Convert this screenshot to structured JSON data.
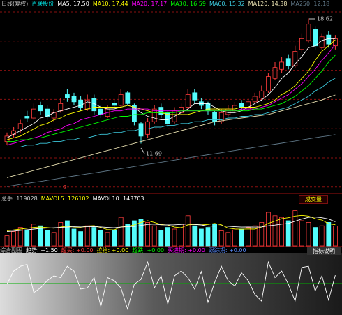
{
  "chart_data": [
    {
      "type": "candlestick",
      "title": "日线(复权)",
      "subtitle": "百联股份",
      "ylim": [
        9,
        19.1
      ],
      "up_color": "#ff3c3c",
      "down_color": "#54fcfc",
      "open": [
        11.8,
        12.2,
        12.5,
        13.2,
        13.1,
        13.8,
        13.6,
        13.1,
        13.5,
        14.4,
        14.3,
        14.1,
        13.6,
        14.2,
        13.6,
        13.2,
        13.9,
        13.8,
        14.5,
        13.8,
        12.8,
        12.2,
        12.9,
        13.7,
        13.4,
        12.9,
        13.4,
        13.7,
        14.5,
        14.0,
        13.9,
        13.4,
        12.9,
        13.3,
        13.5,
        13.9,
        13.6,
        14.0,
        14.2,
        14.6,
        15.3,
        15.8,
        16.4,
        16.0,
        16.9,
        17.4,
        18.0,
        17.0,
        17.7,
        17.1
      ],
      "high": [
        12.3,
        12.6,
        13.0,
        13.5,
        13.9,
        14.0,
        13.8,
        13.6,
        14.2,
        14.7,
        14.5,
        14.3,
        14.4,
        14.4,
        13.8,
        13.8,
        14.1,
        14.7,
        14.6,
        13.9,
        12.9,
        13.1,
        13.8,
        13.9,
        13.5,
        13.7,
        13.9,
        14.7,
        14.7,
        14.2,
        14.0,
        13.5,
        13.6,
        13.8,
        14.0,
        14.1,
        14.2,
        14.5,
        14.9,
        15.6,
        16.2,
        16.5,
        16.6,
        17.1,
        17.8,
        18.62,
        18.2,
        17.8,
        17.9,
        17.7
      ],
      "low": [
        11.6,
        12.0,
        12.3,
        12.9,
        13.0,
        13.3,
        13.0,
        12.9,
        13.4,
        14.0,
        13.8,
        13.5,
        13.5,
        13.3,
        13.1,
        13.1,
        13.6,
        13.7,
        13.8,
        12.7,
        11.69,
        12.0,
        12.8,
        13.1,
        12.6,
        12.8,
        13.3,
        13.6,
        13.9,
        13.6,
        13.3,
        12.7,
        12.8,
        13.2,
        13.4,
        13.5,
        13.5,
        13.9,
        14.1,
        14.5,
        15.2,
        15.6,
        15.8,
        15.9,
        16.7,
        17.3,
        16.9,
        16.9,
        17.0,
        16.9
      ],
      "close": [
        12.1,
        12.4,
        12.8,
        13.1,
        13.6,
        13.5,
        13.2,
        13.4,
        13.9,
        14.2,
        14.0,
        13.7,
        14.1,
        13.5,
        13.3,
        13.6,
        13.8,
        14.4,
        13.9,
        12.9,
        12.1,
        12.9,
        13.6,
        13.3,
        12.8,
        13.5,
        13.7,
        14.4,
        14.1,
        13.8,
        13.5,
        12.9,
        13.4,
        13.6,
        13.8,
        13.7,
        14.0,
        14.3,
        14.6,
        15.4,
        15.9,
        16.2,
        16.0,
        16.8,
        17.5,
        18.3,
        17.1,
        17.6,
        17.2,
        17.5
      ],
      "series": [
        {
          "name": "MA5: 17.50",
          "color": "#ffffff",
          "values": [
            12.0,
            12.2,
            12.4,
            12.6,
            12.8,
            13.1,
            13.2,
            13.4,
            13.5,
            13.6,
            13.7,
            13.8,
            14.0,
            13.9,
            13.7,
            13.6,
            13.6,
            13.7,
            13.8,
            13.7,
            13.4,
            13.2,
            13.1,
            13.0,
            13.0,
            13.2,
            13.4,
            13.6,
            13.9,
            13.9,
            13.9,
            13.7,
            13.5,
            13.4,
            13.4,
            13.5,
            13.7,
            13.9,
            14.1,
            14.4,
            14.8,
            15.3,
            15.6,
            16.1,
            16.5,
            17.0,
            17.1,
            17.4,
            17.5,
            17.5
          ]
        },
        {
          "name": "MA10: 17.44",
          "color": "#ffff00",
          "values": [
            11.9,
            12.0,
            12.1,
            12.3,
            12.5,
            12.7,
            12.8,
            13.0,
            13.1,
            13.3,
            13.4,
            13.5,
            13.6,
            13.7,
            13.7,
            13.7,
            13.7,
            13.7,
            13.8,
            13.7,
            13.6,
            13.5,
            13.4,
            13.4,
            13.3,
            13.3,
            13.3,
            13.3,
            13.4,
            13.5,
            13.6,
            13.6,
            13.6,
            13.6,
            13.6,
            13.7,
            13.7,
            13.7,
            13.8,
            13.9,
            14.1,
            14.4,
            14.6,
            14.9,
            15.3,
            15.7,
            16.3,
            16.8,
            17.1,
            17.44
          ]
        },
        {
          "name": "MA20: 17.17",
          "color": "#ff00ff",
          "values": [
            11.6,
            11.7,
            11.8,
            11.9,
            12.0,
            12.1,
            12.3,
            12.4,
            12.5,
            12.7,
            12.8,
            13.0,
            13.1,
            13.2,
            13.3,
            13.4,
            13.5,
            13.5,
            13.6,
            13.6,
            13.6,
            13.6,
            13.5,
            13.5,
            13.5,
            13.5,
            13.5,
            13.5,
            13.5,
            13.5,
            13.5,
            13.5,
            13.5,
            13.5,
            13.5,
            13.6,
            13.6,
            13.6,
            13.7,
            13.8,
            14.0,
            14.2,
            14.4,
            14.7,
            15.0,
            15.4,
            15.8,
            16.3,
            16.7,
            17.17
          ]
        },
        {
          "name": "MA30: 16.59",
          "color": "#00ff00",
          "values": [
            11.8,
            11.8,
            11.9,
            11.9,
            12.0,
            12.0,
            12.1,
            12.2,
            12.3,
            12.4,
            12.5,
            12.6,
            12.7,
            12.8,
            12.9,
            13.0,
            13.1,
            13.2,
            13.2,
            13.3,
            13.3,
            13.4,
            13.4,
            13.4,
            13.4,
            13.4,
            13.5,
            13.5,
            13.5,
            13.5,
            13.5,
            13.5,
            13.5,
            13.5,
            13.5,
            13.5,
            13.5,
            13.6,
            13.6,
            13.7,
            13.8,
            13.9,
            14.1,
            14.3,
            14.6,
            14.9,
            15.3,
            15.7,
            16.2,
            16.59
          ]
        },
        {
          "name": "MA60: 15.32",
          "color": "#3cc8dc",
          "values": [
            11.5,
            11.5,
            11.5,
            11.6,
            11.6,
            11.7,
            11.7,
            11.8,
            11.8,
            11.9,
            11.9,
            12.0,
            12.0,
            12.1,
            12.2,
            12.2,
            12.3,
            12.3,
            12.4,
            12.4,
            12.5,
            12.5,
            12.6,
            12.6,
            12.7,
            12.7,
            12.8,
            12.8,
            12.9,
            12.9,
            13.0,
            13.0,
            13.0,
            13.1,
            13.1,
            13.2,
            13.2,
            13.3,
            13.3,
            13.4,
            13.5,
            13.6,
            13.7,
            13.9,
            14.1,
            14.3,
            14.6,
            14.8,
            15.1,
            15.32
          ]
        },
        {
          "name": "MA120: 14.38",
          "color": "#e8e0b0",
          "values": [
            9.8,
            9.9,
            10.0,
            10.1,
            10.2,
            10.3,
            10.4,
            10.5,
            10.6,
            10.7,
            10.8,
            10.9,
            11.0,
            11.1,
            11.2,
            11.3,
            11.4,
            11.5,
            11.6,
            11.7,
            11.8,
            11.9,
            12.0,
            12.1,
            12.2,
            12.3,
            12.4,
            12.5,
            12.6,
            12.7,
            12.8,
            12.9,
            12.95,
            13.0,
            13.05,
            13.1,
            13.15,
            13.2,
            13.25,
            13.3,
            13.4,
            13.5,
            13.6,
            13.7,
            13.8,
            13.9,
            14.0,
            14.1,
            14.25,
            14.38
          ]
        },
        {
          "name": "MA250: 12.18",
          "color": "#607888",
          "values": [
            9.3,
            9.36,
            9.42,
            9.48,
            9.54,
            9.59,
            9.65,
            9.71,
            9.77,
            9.83,
            9.89,
            9.95,
            10.01,
            10.06,
            10.12,
            10.18,
            10.24,
            10.3,
            10.36,
            10.42,
            10.48,
            10.54,
            10.59,
            10.65,
            10.71,
            10.77,
            10.83,
            10.89,
            10.95,
            11.01,
            11.07,
            11.12,
            11.18,
            11.24,
            11.3,
            11.36,
            11.42,
            11.48,
            11.54,
            11.6,
            11.65,
            11.71,
            11.77,
            11.83,
            11.89,
            11.95,
            12.01,
            12.07,
            12.12,
            12.18
          ]
        }
      ],
      "annotations": [
        "18.62",
        "11.69",
        "q"
      ]
    },
    {
      "type": "bar",
      "title": "总手: 119028",
      "label": "成交量",
      "ylim": [
        0,
        250000
      ],
      "values": [
        60000,
        85000,
        110000,
        95000,
        130000,
        120000,
        90000,
        80000,
        140000,
        150000,
        100000,
        85000,
        120000,
        110000,
        90000,
        80000,
        95000,
        170000,
        130000,
        150000,
        160000,
        140000,
        120000,
        90000,
        110000,
        100000,
        130000,
        180000,
        120000,
        100000,
        110000,
        130000,
        90000,
        80000,
        95000,
        100000,
        110000,
        120000,
        140000,
        200000,
        180000,
        170000,
        150000,
        210000,
        150000,
        140000,
        110000,
        120000,
        140000,
        119028
      ],
      "series": [
        {
          "name": "MAVOL5: 126102",
          "color": "#ffff00",
          "values": [
            90000,
            95000,
            100000,
            105000,
            110000,
            112000,
            109000,
            105000,
            112000,
            118000,
            112000,
            111000,
            119000,
            121000,
            109000,
            97000,
            95000,
            113000,
            117000,
            125000,
            140000,
            150000,
            140000,
            128000,
            124000,
            112000,
            108000,
            126000,
            128000,
            126000,
            128000,
            134000,
            126000,
            106000,
            101000,
            99000,
            101000,
            100000,
            113000,
            134000,
            148000,
            162000,
            168000,
            178000,
            182000,
            178000,
            162000,
            154000,
            132000,
            126102
          ]
        },
        {
          "name": "MAVOL10: 143703",
          "color": "#ffffff",
          "values": [
            85000,
            88000,
            92000,
            96000,
            100000,
            104000,
            106000,
            108000,
            110000,
            112000,
            114000,
            113000,
            114000,
            115000,
            113000,
            110000,
            108000,
            112000,
            115000,
            116000,
            122000,
            128000,
            130000,
            126000,
            125000,
            126000,
            128000,
            131000,
            128000,
            125000,
            118000,
            118000,
            120000,
            117000,
            114000,
            112000,
            113000,
            112000,
            113000,
            120000,
            124000,
            130000,
            134000,
            147000,
            160000,
            170000,
            172000,
            168000,
            160000,
            143703
          ]
        }
      ]
    },
    {
      "type": "line",
      "title": "综合副图",
      "label": "指标说明",
      "ylim": [
        -5,
        5
      ],
      "series": [
        {
          "name": "趋势: +1.50",
          "color": "#ffffff",
          "values": [
            0.0,
            2.2,
            3.0,
            3.3,
            -1.4,
            -0.6,
            0.6,
            1.4,
            1.1,
            3.0,
            2.2,
            -0.8,
            -0.6,
            1.1,
            -3.7,
            1.1,
            0.6,
            -0.6,
            -4.1,
            0.0,
            0.8,
            3.7,
            -0.6,
            1.4,
            -3.3,
            1.4,
            2.2,
            1.1,
            -0.8,
            2.1,
            -3.0,
            0.3,
            3.0,
            0.6,
            -0.3,
            1.9,
            0.6,
            -1.7,
            -2.8,
            3.7,
            1.1,
            2.2,
            0.0,
            -2.8,
            2.8,
            3.0,
            -1.1,
            1.4,
            -2.6,
            1.5
          ]
        }
      ],
      "legend_items": [
        {
          "name": "超买: +0.00",
          "color": "#ff3c3c"
        },
        {
          "name": "拉抬: +0.00",
          "color": "#ffff00"
        },
        {
          "name": "超跌: +0.00",
          "color": "#00ff00"
        },
        {
          "name": "买进期: +0.00",
          "color": "#ff00ff"
        },
        {
          "name": "跟踪期: +0.00",
          "color": "#5a8cff"
        }
      ]
    }
  ]
}
